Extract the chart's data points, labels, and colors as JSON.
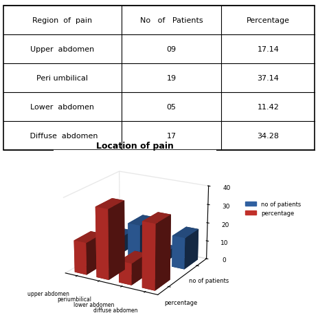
{
  "table_headers": [
    "Region  of  pain",
    "No   of   Patients",
    "Percentage"
  ],
  "table_rows": [
    [
      "Upper  abdomen",
      "09",
      "17.14"
    ],
    [
      "Peri umbilical",
      "19",
      "37.14"
    ],
    [
      "Lower  abdomen",
      "05",
      "11.42"
    ],
    [
      " Diffuse  abdomen",
      "17",
      "34.28"
    ]
  ],
  "categories": [
    "upper abdomen",
    "periumbilical",
    "lower abdomen",
    "diffuse abdomen"
  ],
  "no_of_patients": [
    9,
    19,
    5,
    17
  ],
  "percentage": [
    17.14,
    37.14,
    11.42,
    34.28
  ],
  "bar_color_blue": "#3060a0",
  "bar_color_red": "#c0302a",
  "chart_title": "Location of pain",
  "xlabel": "Region of  pain",
  "ylim": [
    0,
    40
  ],
  "yticks": [
    0,
    10,
    20,
    30,
    40
  ],
  "legend_labels": [
    "no of patients",
    "percentage"
  ],
  "legend_text_series": [
    "percentage",
    "no of patients"
  ]
}
